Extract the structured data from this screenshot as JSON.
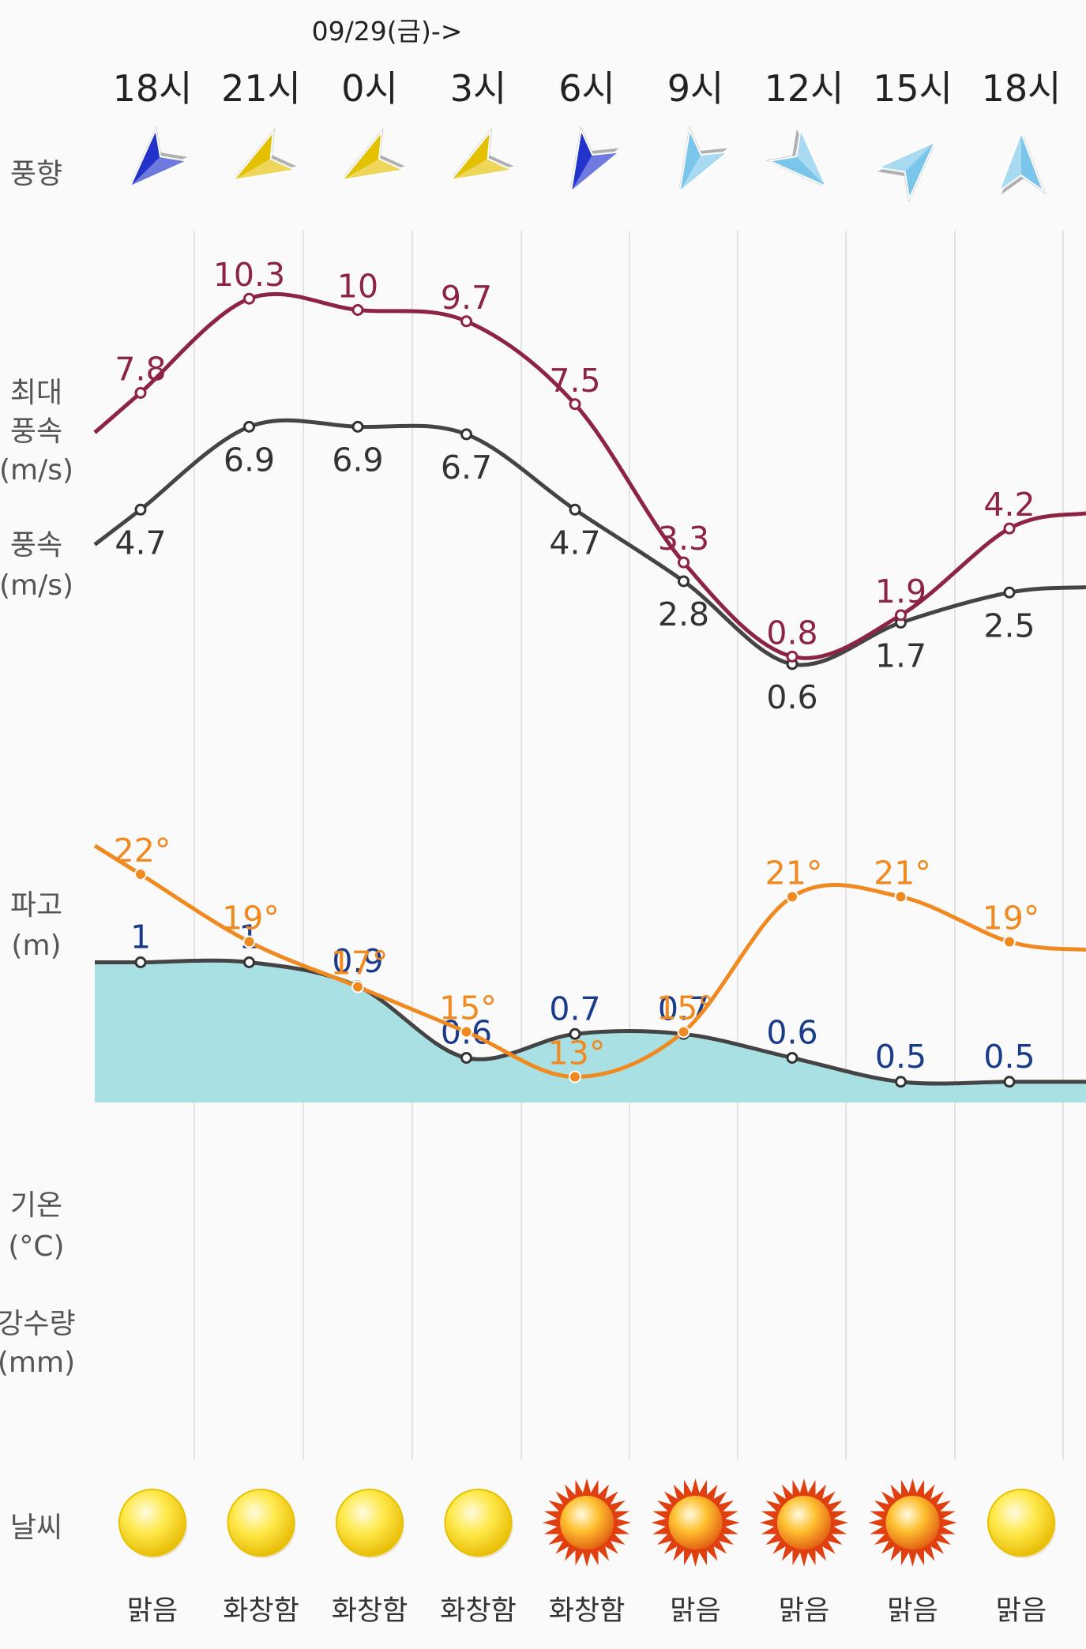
{
  "date_label": "09/29(금)->",
  "row_labels": {
    "wind_dir": "풍향",
    "max_wind_line1": "최대",
    "max_wind_line2": "풍속",
    "max_wind_unit": "(m/s)",
    "wind_line1": "풍속",
    "wind_unit": "(m/s)",
    "wave_line1": "파고",
    "wave_unit": "(m)",
    "temp_line1": "기온",
    "temp_unit": "(°C)",
    "precip_line1": "강수량",
    "precip_unit": "(mm)",
    "weather": "날씨"
  },
  "chart_data": {
    "type": "line",
    "title": "",
    "categories": [
      "18시",
      "21시",
      "0시",
      "3시",
      "6시",
      "9시",
      "12시",
      "15시",
      "18시"
    ],
    "wind_direction_deg": [
      225,
      240,
      240,
      240,
      210,
      210,
      135,
      45,
      0
    ],
    "wind_direction_colors": [
      "#2233cc",
      "#e3c000",
      "#e3c000",
      "#e3c000",
      "#2233cc",
      "#7ac6ea",
      "#7ac6ea",
      "#7ac6ea",
      "#7ac6ea"
    ],
    "series": [
      {
        "name": "최대풍속",
        "unit": "m/s",
        "color": "#8e2444",
        "values": [
          7.8,
          10.3,
          10,
          9.7,
          7.5,
          3.3,
          0.8,
          1.9,
          4.2
        ],
        "labels": [
          "7.8",
          "10.3",
          "10",
          "9.7",
          "7.5",
          "3.3",
          "0.8",
          "1.9",
          "4.2"
        ]
      },
      {
        "name": "풍속",
        "unit": "m/s",
        "color": "#444444",
        "values": [
          4.7,
          6.9,
          6.9,
          6.7,
          4.7,
          2.8,
          0.6,
          1.7,
          2.5
        ],
        "labels": [
          "4.7",
          "6.9",
          "6.9",
          "6.7",
          "4.7",
          "2.8",
          "0.6",
          "1.7",
          "2.5"
        ]
      },
      {
        "name": "파고",
        "unit": "m",
        "color": "#444444",
        "fill": "#a8e0e3",
        "values": [
          1,
          1,
          0.9,
          0.6,
          0.7,
          0.7,
          0.6,
          0.5,
          0.5
        ],
        "labels": [
          "1",
          "1",
          "0.9",
          "0.6",
          "0.7",
          "0.7",
          "0.6",
          "0.5",
          "0.5"
        ]
      },
      {
        "name": "기온",
        "unit": "°C",
        "color": "#f08a20",
        "values": [
          22,
          19,
          17,
          15,
          13,
          15,
          21,
          21,
          19
        ],
        "labels": [
          "22°",
          "19°",
          "17°",
          "15°",
          "13°",
          "15°",
          "21°",
          "21°",
          "19°"
        ]
      }
    ],
    "weather": [
      "맑음",
      "화창함",
      "화창함",
      "화창함",
      "화창함",
      "맑음",
      "맑음",
      "맑음",
      "맑음"
    ],
    "weather_icons": [
      "sun-icon",
      "sun-icon",
      "sun-icon",
      "sun-icon",
      "sunny-burst-icon",
      "sunny-burst-icon",
      "sunny-burst-icon",
      "sunny-burst-icon",
      "sun-icon"
    ]
  }
}
